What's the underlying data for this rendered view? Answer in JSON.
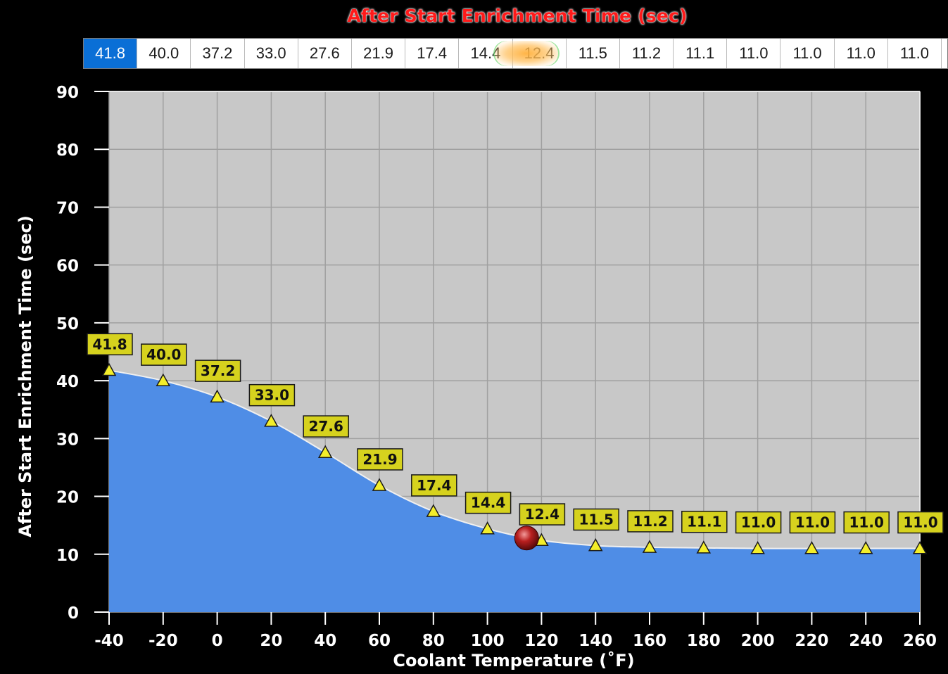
{
  "title": "After Start Enrichment Time (sec)",
  "value_row": {
    "cells": [
      "41.8",
      "40.0",
      "37.2",
      "33.0",
      "27.6",
      "21.9",
      "17.4",
      "14.4",
      "12.4",
      "11.5",
      "11.2",
      "11.1",
      "11.0",
      "11.0",
      "11.0",
      "11.0"
    ],
    "selected_index": 0,
    "highlighted_index": 8
  },
  "colors": {
    "background": "#000000",
    "plot_background": "#c8c8c8",
    "grid": "#a0a0a0",
    "area_fill": "#4f8de6",
    "curve": "#f0f0f0",
    "label_fill": "#d6d21e",
    "marker_fill": "#f3ee2a",
    "cursor": "#b81f1f",
    "title": "#ff1a1a"
  },
  "chart_data": {
    "type": "area",
    "xlabel": "Coolant Temperature (˚F)",
    "ylabel": "After Start Enrichment Time (sec)",
    "xlim": [
      -40,
      260
    ],
    "ylim": [
      0,
      90
    ],
    "x_ticks": [
      "-40",
      "-20",
      "0",
      "20",
      "40",
      "60",
      "80",
      "100",
      "120",
      "140",
      "160",
      "180",
      "200",
      "220",
      "240",
      "260"
    ],
    "y_ticks": [
      "0",
      "10",
      "20",
      "30",
      "40",
      "50",
      "60",
      "70",
      "80",
      "90"
    ],
    "grid": true,
    "x": [
      -40,
      -20,
      0,
      20,
      40,
      60,
      80,
      100,
      120,
      140,
      160,
      180,
      200,
      220,
      240,
      260
    ],
    "values": [
      41.8,
      40.0,
      37.2,
      33.0,
      27.6,
      21.9,
      17.4,
      14.4,
      12.4,
      11.5,
      11.2,
      11.1,
      11.0,
      11.0,
      11.0,
      11.0
    ],
    "data_labels": [
      "41.8",
      "40.0",
      "37.2",
      "33.0",
      "27.6",
      "21.9",
      "17.4",
      "14.4",
      "12.4",
      "11.5",
      "11.2",
      "11.1",
      "11.0",
      "11.0",
      "11.0",
      "11.0"
    ],
    "cursor": {
      "x": 114.5,
      "y": 12.8
    }
  }
}
